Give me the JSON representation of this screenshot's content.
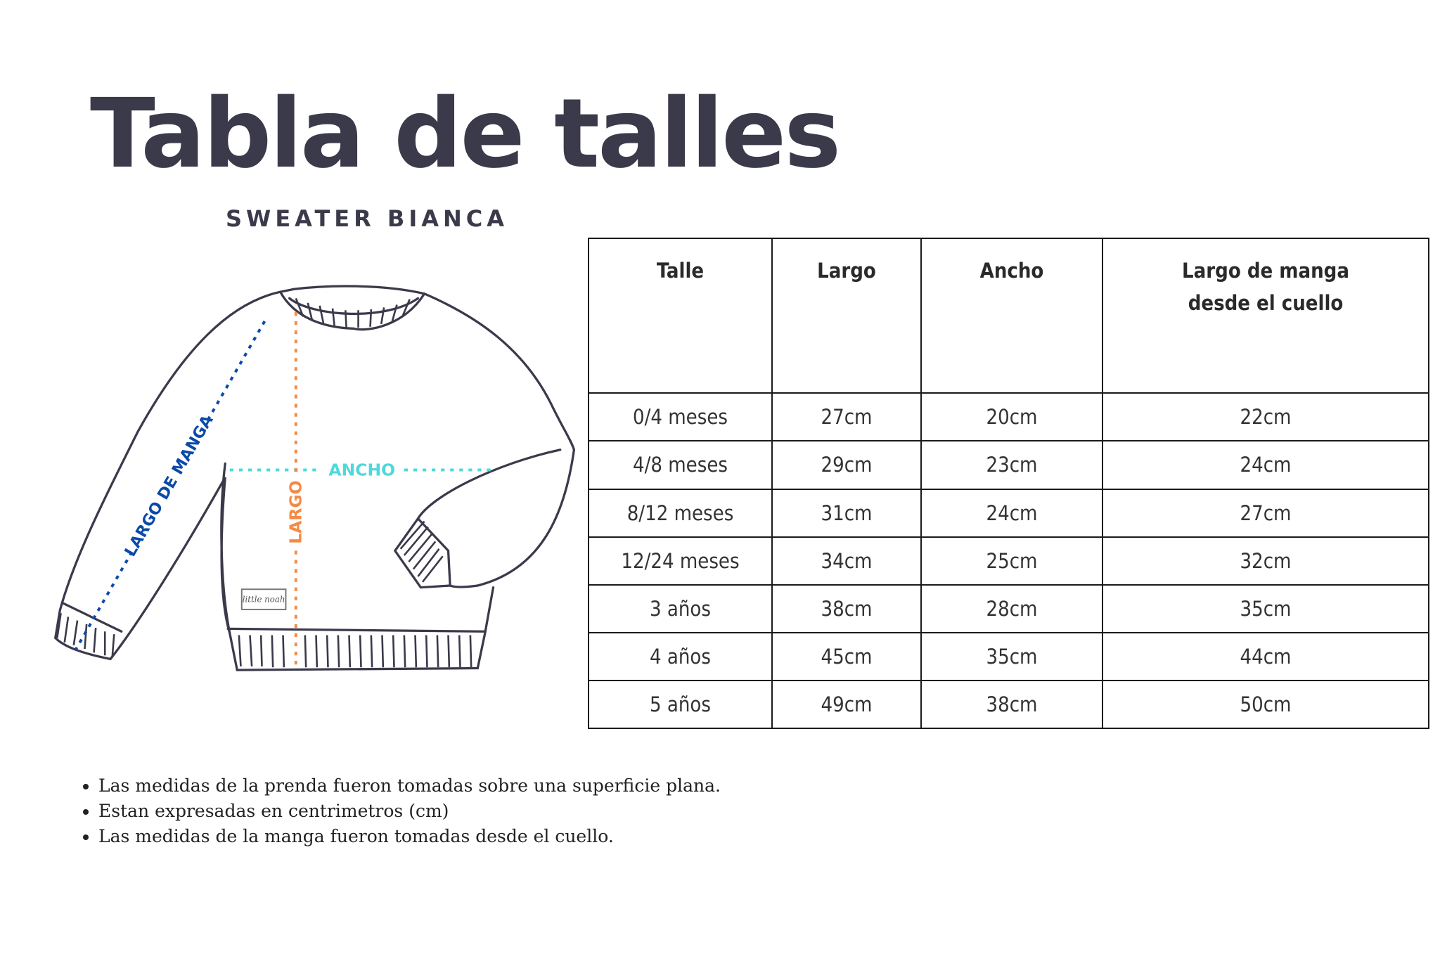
{
  "title": "Tabla de talles",
  "subtitle": "SWEATER BIANCA",
  "diagram": {
    "labels": {
      "sleeve": "LARGO DE MANGA",
      "width": "ANCHO",
      "length": "LARGO"
    },
    "brand_tag": "little noah",
    "colors": {
      "sleeve": "#0a4aa8",
      "width": "#4fd8dc",
      "length": "#f58a45",
      "outline": "#3b3a4b"
    }
  },
  "table": {
    "headers": [
      "Talle",
      "Largo",
      "Ancho",
      "Largo de manga desde el cuello"
    ],
    "rows": [
      [
        "0/4 meses",
        "27cm",
        "20cm",
        "22cm"
      ],
      [
        "4/8 meses",
        "29cm",
        "23cm",
        "24cm"
      ],
      [
        "8/12 meses",
        "31cm",
        "24cm",
        "27cm"
      ],
      [
        "12/24 meses",
        "34cm",
        "25cm",
        "32cm"
      ],
      [
        "3 años",
        "38cm",
        "28cm",
        "35cm"
      ],
      [
        "4 años",
        "45cm",
        "35cm",
        "44cm"
      ],
      [
        "5 años",
        "49cm",
        "38cm",
        "50cm"
      ]
    ]
  },
  "notes": [
    "Las medidas de la prenda fueron tomadas sobre una superficie plana.",
    "Estan expresadas en centrimetros (cm)",
    "Las medidas de la manga fueron tomadas desde el cuello."
  ]
}
